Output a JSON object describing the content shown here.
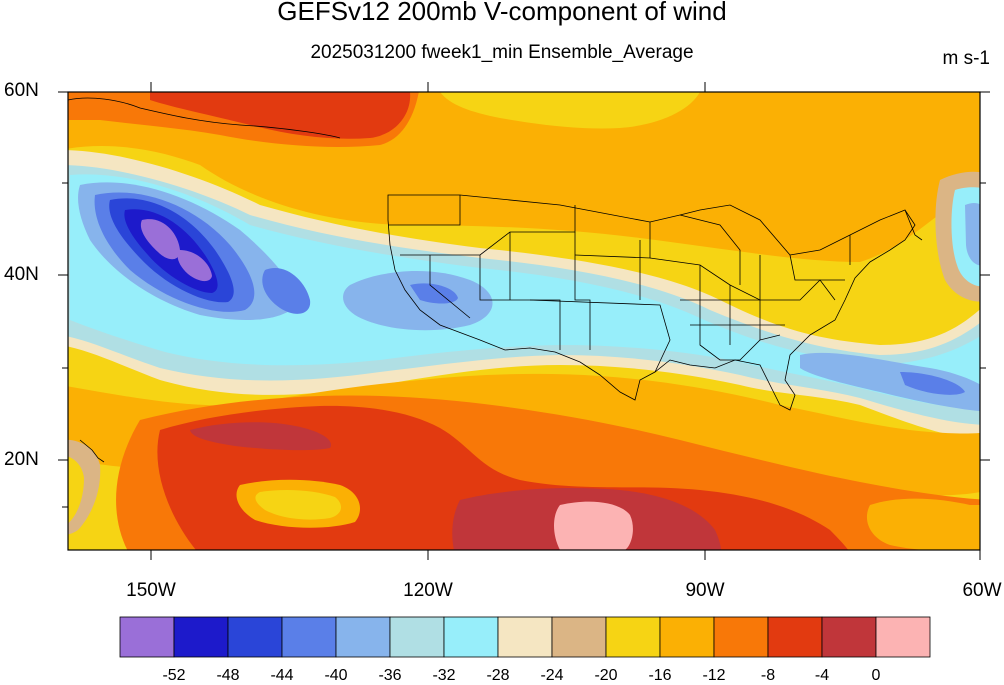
{
  "title": "GEFSv12 200mb V-component of wind",
  "subtitle": "2025031200 fweek1_min Ensemble_Average",
  "units": "m s-1",
  "lat_labels": [
    "60N",
    "40N",
    "20N"
  ],
  "lon_labels": [
    "150W",
    "120W",
    "90W",
    "60W"
  ],
  "colorbar": {
    "colors": [
      "#9a6fd8",
      "#1d1acb",
      "#2a45d8",
      "#5a7fe8",
      "#87b4ec",
      "#b0dfe4",
      "#97eefa",
      "#f5e6c2",
      "#dbb585",
      "#f6d414",
      "#fbb004",
      "#f87808",
      "#e23a10",
      "#c0363a",
      "#fcb3b3"
    ],
    "labels": [
      "-52",
      "-48",
      "-44",
      "-40",
      "-36",
      "-32",
      "-28",
      "-24",
      "-20",
      "-16",
      "-12",
      "-8",
      "-4",
      "0"
    ]
  }
}
